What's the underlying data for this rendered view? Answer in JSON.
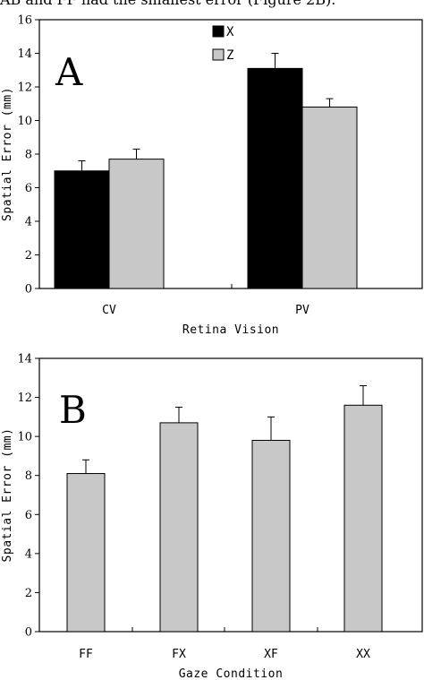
{
  "top_text": "AB and FF had the smallest error (Figure 2B).",
  "chart_data": [
    {
      "type": "bar",
      "panel_label": "A",
      "categories": [
        "CV",
        "PV"
      ],
      "series": [
        {
          "name": "X",
          "values": [
            7.0,
            13.1
          ],
          "errors": [
            0.6,
            0.9
          ],
          "color": "#000000"
        },
        {
          "name": "Z",
          "values": [
            7.7,
            10.8
          ],
          "errors": [
            0.6,
            0.5
          ],
          "color": "#c8c8c8"
        }
      ],
      "xlabel": "Retina Vision",
      "ylabel": "Spatial Error (mm)",
      "ylim": [
        0,
        16
      ],
      "yticks": [
        0,
        2,
        4,
        6,
        8,
        10,
        12,
        14,
        16
      ],
      "legend_position": "top-center",
      "grid": false
    },
    {
      "type": "bar",
      "panel_label": "B",
      "categories": [
        "FF",
        "FX",
        "XF",
        "XX"
      ],
      "series": [
        {
          "values": [
            8.1,
            10.7,
            9.8,
            11.6
          ],
          "errors": [
            0.7,
            0.8,
            1.2,
            1.0
          ],
          "color": "#c8c8c8"
        }
      ],
      "xlabel": "Gaze Condition",
      "ylabel": "Spatial Error (mm)",
      "ylim": [
        0,
        14
      ],
      "yticks": [
        0,
        2,
        4,
        6,
        8,
        10,
        12,
        14
      ],
      "grid": false
    }
  ]
}
